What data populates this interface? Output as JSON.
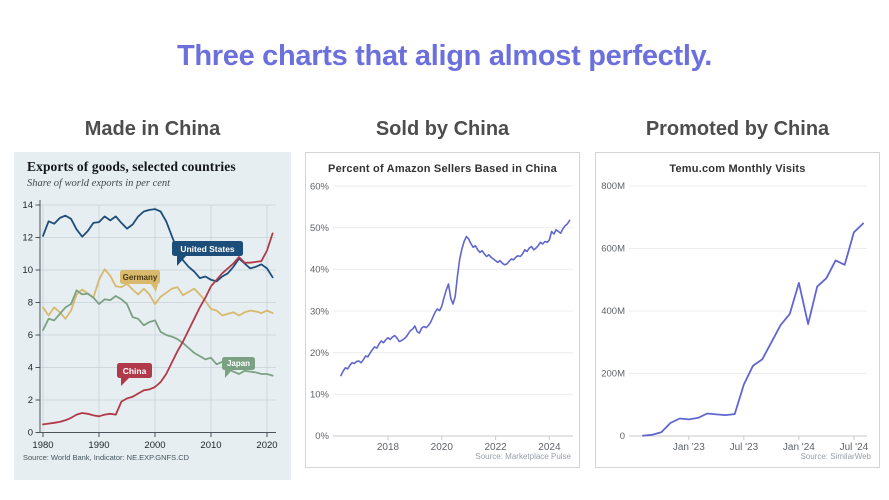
{
  "page": {
    "title": "Three charts that align almost perfectly."
  },
  "columns": [
    {
      "header": "Made in China"
    },
    {
      "header": "Sold by China"
    },
    {
      "header": "Promoted by China"
    }
  ],
  "chart_data": [
    {
      "type": "line",
      "panel": "made-in-china",
      "title": "Exports of goods, selected countries",
      "subtitle": "Share of world exports in per cent",
      "source": "Source: World Bank, Indicator: NE.EXP.GNFS.CD",
      "x_start_year": 1980,
      "x_step_years": 1,
      "xticks": [
        1980,
        1990,
        2000,
        2010,
        2020
      ],
      "yticks": [
        0,
        2,
        4,
        6,
        8,
        10,
        12,
        14
      ],
      "ylim": [
        0,
        14.3
      ],
      "grid": true,
      "background": "#e7eef1",
      "series": [
        {
          "name": "United States",
          "color": "#1d4e79",
          "label_text_color": "#ffffff",
          "values": [
            12.1,
            13.0,
            12.85,
            13.2,
            13.35,
            13.15,
            12.5,
            12.05,
            12.4,
            12.9,
            12.95,
            13.3,
            13.05,
            13.3,
            12.9,
            12.55,
            12.8,
            13.3,
            13.6,
            13.7,
            13.75,
            13.6,
            13.0,
            12.1,
            11.2,
            10.6,
            10.2,
            9.9,
            9.5,
            9.6,
            9.4,
            9.3,
            9.6,
            9.8,
            10.2,
            10.7,
            10.4,
            10.1,
            10.2,
            10.35,
            10.1,
            9.55
          ]
        },
        {
          "name": "Germany",
          "color": "#d8b96d",
          "label_text_color": "#4a3a10",
          "values": [
            7.7,
            7.2,
            7.7,
            7.4,
            7.0,
            7.5,
            8.5,
            8.8,
            8.55,
            8.3,
            9.4,
            10.05,
            9.65,
            9.0,
            8.95,
            9.15,
            8.8,
            8.5,
            8.85,
            8.5,
            7.9,
            8.35,
            8.6,
            8.85,
            8.95,
            8.45,
            8.65,
            8.85,
            8.5,
            8.1,
            7.6,
            7.5,
            7.2,
            7.3,
            7.4,
            7.2,
            7.4,
            7.5,
            7.45,
            7.35,
            7.5,
            7.35
          ]
        },
        {
          "name": "Japan",
          "color": "#7ba183",
          "label_text_color": "#ffffff",
          "values": [
            6.3,
            7.0,
            6.9,
            7.3,
            7.7,
            7.9,
            8.75,
            8.5,
            8.55,
            8.3,
            7.9,
            8.2,
            8.15,
            8.4,
            8.2,
            7.9,
            7.1,
            7.0,
            6.6,
            6.8,
            6.9,
            6.2,
            6.0,
            5.9,
            5.75,
            5.5,
            5.2,
            4.9,
            4.7,
            4.5,
            4.6,
            4.2,
            4.35,
            3.9,
            3.75,
            3.6,
            3.8,
            3.75,
            3.7,
            3.6,
            3.6,
            3.5
          ]
        },
        {
          "name": "China",
          "color": "#b03a4a",
          "label_text_color": "#ffffff",
          "values": [
            0.5,
            0.55,
            0.6,
            0.65,
            0.75,
            0.9,
            1.1,
            1.2,
            1.15,
            1.05,
            1.0,
            1.1,
            1.15,
            1.1,
            1.9,
            2.1,
            2.2,
            2.4,
            2.6,
            2.65,
            2.8,
            3.1,
            3.6,
            4.3,
            5.0,
            5.6,
            6.3,
            7.0,
            7.7,
            8.3,
            9.0,
            9.4,
            9.8,
            10.1,
            10.4,
            10.8,
            10.45,
            10.45,
            10.5,
            10.55,
            11.2,
            12.25
          ]
        }
      ]
    },
    {
      "type": "line",
      "panel": "sold-by-china",
      "title": "Percent of Amazon Sellers Based in China",
      "source": "Source: Marketplace Pulse",
      "line_color": "#6066d0",
      "x_start_year": 2016.25,
      "x_step_years": 0.08333,
      "xticks": [
        2018,
        2020,
        2022,
        2024
      ],
      "yticks": [
        "0%",
        "10%",
        "20%",
        "30%",
        "40%",
        "50%",
        "60%"
      ],
      "ytick_values": [
        0,
        10,
        20,
        30,
        40,
        50,
        60
      ],
      "ylim": [
        0,
        60
      ],
      "values": [
        14.5,
        15.6,
        16.4,
        16.1,
        17.0,
        17.6,
        17.4,
        17.9,
        18.0,
        17.6,
        18.3,
        19.2,
        19.0,
        19.9,
        20.7,
        21.4,
        21.1,
        22.1,
        22.8,
        22.4,
        23.1,
        23.6,
        23.2,
        23.8,
        24.1,
        23.5,
        22.7,
        22.9,
        23.3,
        23.7,
        24.5,
        25.3,
        25.7,
        26.4,
        25.1,
        24.7,
        25.9,
        26.3,
        26.0,
        26.5,
        27.3,
        28.5,
        29.7,
        30.5,
        30.1,
        31.2,
        33.2,
        35.1,
        36.5,
        33.0,
        31.7,
        33.5,
        38.5,
        42.5,
        45.0,
        46.8,
        47.9,
        47.3,
        46.2,
        45.3,
        45.7,
        44.7,
        44.1,
        44.5,
        43.7,
        43.1,
        43.5,
        42.9,
        42.5,
        42.1,
        41.7,
        42.1,
        41.5,
        41.1,
        41.3,
        41.9,
        42.5,
        42.3,
        42.9,
        43.3,
        43.1,
        43.7,
        44.7,
        44.3,
        45.1,
        45.5,
        44.7,
        45.1,
        45.7,
        46.5,
        46.1,
        46.7,
        46.5,
        47.1,
        49.1,
        48.5,
        49.5,
        49.1,
        48.7,
        49.7,
        50.5,
        50.9,
        51.8
      ]
    },
    {
      "type": "line",
      "panel": "promoted-by-china",
      "title": "Temu.com Monthly Visits",
      "source": "Source: SimilarWeb",
      "line_color": "#6066d0",
      "x_start_month": "Aug 2022",
      "x_step_months": 1,
      "xticks": [
        "Jan '23",
        "Jul '23",
        "Jan '24",
        "Jul '24"
      ],
      "xtick_month_indices": [
        5,
        11,
        17,
        23
      ],
      "yticks": [
        "0",
        "200M",
        "400M",
        "600M",
        "800M"
      ],
      "ytick_values": [
        0,
        200,
        400,
        600,
        800
      ],
      "ylim": [
        0,
        800
      ],
      "values": [
        1,
        4,
        12,
        42,
        56,
        53,
        58,
        72,
        69,
        67,
        70,
        165,
        225,
        245,
        300,
        355,
        390,
        490,
        358,
        478,
        505,
        562,
        548,
        652,
        680
      ]
    }
  ]
}
